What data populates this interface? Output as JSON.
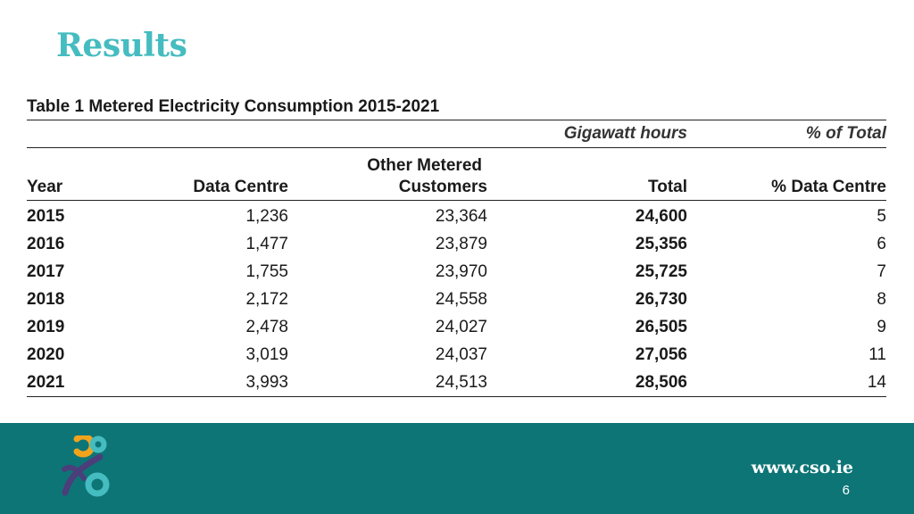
{
  "slide": {
    "title": "Results",
    "page_number": "6"
  },
  "table": {
    "caption": "Table 1 Metered Electricity Consumption 2015-2021",
    "unit_label": "Gigawatt hours",
    "pct_label": "% of Total",
    "headers": {
      "year": "Year",
      "data_centre": "Data Centre",
      "other_metered_line1": "Other Metered",
      "other_metered_line2": "Customers",
      "total": "Total",
      "pct_data_centre": "% Data Centre"
    },
    "rows": [
      {
        "year": "2015",
        "data_centre": "1,236",
        "other_metered": "23,364",
        "total": "24,600",
        "pct_data_centre": "5"
      },
      {
        "year": "2016",
        "data_centre": "1,477",
        "other_metered": "23,879",
        "total": "25,356",
        "pct_data_centre": "6"
      },
      {
        "year": "2017",
        "data_centre": "1,755",
        "other_metered": "23,970",
        "total": "25,725",
        "pct_data_centre": "7"
      },
      {
        "year": "2018",
        "data_centre": "2,172",
        "other_metered": "24,558",
        "total": "26,730",
        "pct_data_centre": "8"
      },
      {
        "year": "2019",
        "data_centre": "2,478",
        "other_metered": "24,027",
        "total": "26,505",
        "pct_data_centre": "9"
      },
      {
        "year": "2020",
        "data_centre": "3,019",
        "other_metered": "24,037",
        "total": "27,056",
        "pct_data_centre": "11"
      },
      {
        "year": "2021",
        "data_centre": "3,993",
        "other_metered": "24,513",
        "total": "28,506",
        "pct_data_centre": "14"
      }
    ]
  },
  "footer": {
    "url": "www.cso.ie",
    "logo_icon": "cso-logo-icon",
    "colors": {
      "band": "#0e7576",
      "title": "#45bcc0",
      "logo_orange": "#f2a31b",
      "logo_teal": "#45bcc0",
      "logo_purple": "#4a3f7a"
    }
  }
}
